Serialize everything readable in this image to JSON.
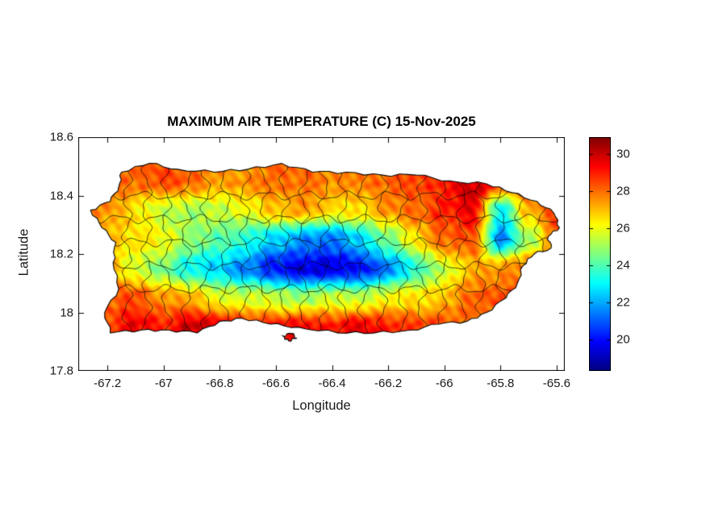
{
  "chart_data": {
    "type": "heatmap",
    "title": "MAXIMUM AIR TEMPERATURE (C) 15-Nov-2025",
    "xlabel": "Longitude",
    "ylabel": "Latitude",
    "units": "degrees C",
    "xlim": [
      -67.304,
      -65.571
    ],
    "ylim": [
      17.8,
      18.6
    ],
    "x_tick_values": [
      -67.2,
      -67,
      -66.8,
      -66.6,
      -66.4,
      -66.2,
      -66,
      -65.8,
      -65.6
    ],
    "x_tick_labels": [
      "-67.2",
      "-67",
      "-66.8",
      "-66.6",
      "-66.4",
      "-66.2",
      "-66",
      "-65.8",
      "-65.6"
    ],
    "y_tick_values": [
      17.8,
      18,
      18.2,
      18.4,
      18.6
    ],
    "y_tick_labels": [
      "17.8",
      "18",
      "18.2",
      "18.4",
      "18.6"
    ],
    "grid_on": false,
    "legend": "none",
    "colorbar": {
      "position": "right",
      "colormap": "jet",
      "clim": [
        18.3,
        30.9
      ],
      "tick_values": [
        20,
        22,
        24,
        26,
        28,
        30
      ],
      "tick_labels": [
        "20",
        "22",
        "24",
        "26",
        "28",
        "30"
      ]
    },
    "field_grid": {
      "lons": [
        -67.2,
        -67.1,
        -67.0,
        -66.9,
        -66.8,
        -66.7,
        -66.6,
        -66.5,
        -66.4,
        -66.3,
        -66.2,
        -66.1,
        -66.0,
        -65.9,
        -65.8,
        -65.7,
        -65.6
      ],
      "lats": [
        17.95,
        18.05,
        18.15,
        18.25,
        18.35,
        18.45
      ],
      "values_c": [
        [
          28.5,
          29.5,
          29.0,
          30.0,
          29.5,
          29.0,
          29.0,
          29.5,
          29.0,
          29.5,
          29.0,
          28.5,
          28.5,
          28.0,
          28.0,
          28.0,
          28.0
        ],
        [
          28.0,
          28.5,
          27.5,
          27.0,
          26.0,
          25.5,
          25.5,
          25.0,
          25.5,
          25.5,
          26.0,
          26.5,
          27.0,
          28.0,
          28.5,
          28.5,
          28.5
        ],
        [
          27.5,
          25.5,
          24.5,
          23.0,
          22.5,
          21.5,
          20.0,
          19.5,
          19.5,
          20.0,
          21.5,
          23.5,
          25.5,
          27.0,
          27.5,
          28.0,
          28.0
        ],
        [
          27.0,
          26.5,
          26.0,
          25.0,
          24.0,
          23.5,
          22.5,
          21.5,
          21.5,
          22.5,
          24.5,
          26.5,
          28.0,
          28.5,
          21.5,
          25.0,
          28.0
        ],
        [
          27.5,
          26.5,
          25.5,
          25.0,
          25.5,
          26.0,
          27.0,
          27.5,
          26.5,
          26.5,
          27.5,
          28.0,
          29.0,
          29.5,
          23.0,
          27.0,
          28.5
        ],
        [
          28.0,
          28.0,
          28.5,
          28.0,
          27.5,
          27.5,
          28.0,
          28.0,
          27.5,
          28.0,
          28.0,
          28.5,
          29.0,
          30.0,
          29.5,
          28.5,
          28.5
        ]
      ]
    },
    "island_outline_lonlat": [
      [
        -67.26,
        18.35
      ],
      [
        -67.19,
        18.38
      ],
      [
        -67.16,
        18.43
      ],
      [
        -67.15,
        18.48
      ],
      [
        -67.05,
        18.51
      ],
      [
        -66.95,
        18.49
      ],
      [
        -66.82,
        18.48
      ],
      [
        -66.7,
        18.49
      ],
      [
        -66.58,
        18.51
      ],
      [
        -66.47,
        18.48
      ],
      [
        -66.35,
        18.48
      ],
      [
        -66.22,
        18.47
      ],
      [
        -66.1,
        18.47
      ],
      [
        -65.98,
        18.45
      ],
      [
        -65.85,
        18.44
      ],
      [
        -65.76,
        18.41
      ],
      [
        -65.67,
        18.38
      ],
      [
        -65.61,
        18.34
      ],
      [
        -65.59,
        18.29
      ],
      [
        -65.63,
        18.26
      ],
      [
        -65.62,
        18.22
      ],
      [
        -65.68,
        18.2
      ],
      [
        -65.72,
        18.16
      ],
      [
        -65.74,
        18.1
      ],
      [
        -65.78,
        18.05
      ],
      [
        -65.85,
        18.0
      ],
      [
        -65.92,
        17.97
      ],
      [
        -66.02,
        17.96
      ],
      [
        -66.12,
        17.94
      ],
      [
        -66.25,
        17.93
      ],
      [
        -66.38,
        17.93
      ],
      [
        -66.52,
        17.95
      ],
      [
        -66.62,
        17.96
      ],
      [
        -66.72,
        17.98
      ],
      [
        -66.8,
        17.97
      ],
      [
        -66.88,
        17.93
      ],
      [
        -66.98,
        17.94
      ],
      [
        -67.08,
        17.94
      ],
      [
        -67.19,
        17.93
      ],
      [
        -67.21,
        18.0
      ],
      [
        -67.16,
        18.08
      ],
      [
        -67.18,
        18.17
      ],
      [
        -67.17,
        18.24
      ],
      [
        -67.22,
        18.29
      ]
    ],
    "islets_lonlat": [
      [
        [
          -66.575,
          17.92
        ],
        [
          -66.545,
          17.928
        ],
        [
          -66.525,
          17.912
        ],
        [
          -66.555,
          17.903
        ]
      ]
    ],
    "municipality_boundaries": {
      "vertical_lons": [
        -67.13,
        -67.06,
        -66.99,
        -66.92,
        -66.85,
        -66.78,
        -66.71,
        -66.64,
        -66.57,
        -66.5,
        -66.43,
        -66.36,
        -66.29,
        -66.22,
        -66.15,
        -66.08,
        -66.01,
        -65.94,
        -65.87,
        -65.8,
        -65.73,
        -65.66
      ],
      "horizontal_lats": [
        18.08,
        18.16,
        18.24,
        18.32,
        18.4
      ]
    },
    "colors": {
      "axis": "#000000",
      "text": "#1a1a1a",
      "background": "#ffffff"
    }
  }
}
